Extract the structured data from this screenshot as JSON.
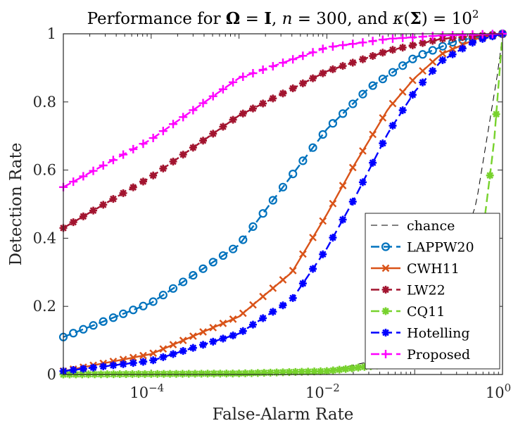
{
  "chart_data": {
    "type": "line",
    "title": "Performance for Ω = I, n = 300, and κ(Σ) = 10²",
    "title_parts": {
      "prefix": "Performance for ",
      "omega": "Ω",
      "eq1": " = ",
      "ident": "I",
      "comma1": ", ",
      "n": "n",
      "eq2": " = 300, and ",
      "kappa": "κ",
      "open": "(",
      "sigma": "Σ",
      "close": ") = 10",
      "sup": "2"
    },
    "xlabel": "False-Alarm Rate",
    "ylabel": "Detection Rate",
    "xscale": "log",
    "xlim": [
      1e-05,
      1
    ],
    "ylim": [
      0,
      1
    ],
    "xticks": [
      {
        "value": 0.0001,
        "base": "10",
        "exp": "−4"
      },
      {
        "value": 0.01,
        "base": "10",
        "exp": "−2"
      },
      {
        "value": 1,
        "base": "10",
        "exp": "0"
      }
    ],
    "yticks": [
      {
        "value": 0,
        "label": "0"
      },
      {
        "value": 0.2,
        "label": "0.2"
      },
      {
        "value": 0.4,
        "label": "0.4"
      },
      {
        "value": 0.6,
        "label": "0.6"
      },
      {
        "value": 0.8,
        "label": "0.8"
      },
      {
        "value": 1,
        "label": "1"
      }
    ],
    "legend_position": "bottom-right",
    "series": [
      {
        "name": "chance",
        "color": "#000000",
        "marker": "none",
        "dash": "dashed",
        "x": [
          1e-05,
          0.001,
          0.01,
          0.05,
          0.2,
          0.5,
          0.9,
          1
        ],
        "y": [
          1e-05,
          0.001,
          0.01,
          0.05,
          0.2,
          0.5,
          0.9,
          1
        ]
      },
      {
        "name": "LAPPW20",
        "color": "#0072BD",
        "marker": "circle",
        "dash": "dashed",
        "x": [
          1e-05,
          0.0001,
          0.001,
          0.01,
          0.03,
          0.1,
          0.3,
          1
        ],
        "y": [
          0.11,
          0.21,
          0.38,
          0.72,
          0.84,
          0.93,
          0.98,
          1.0
        ]
      },
      {
        "name": "CWH11",
        "color": "#D95319",
        "marker": "x",
        "dash": "solid",
        "x": [
          1e-05,
          0.0001,
          0.001,
          0.004,
          0.01,
          0.02,
          0.05,
          0.1,
          0.2,
          0.5,
          1
        ],
        "y": [
          0.01,
          0.06,
          0.17,
          0.3,
          0.47,
          0.61,
          0.78,
          0.87,
          0.94,
          0.985,
          1.0
        ]
      },
      {
        "name": "LW22",
        "color": "#A2142F",
        "marker": "star",
        "dash": "dashed",
        "x": [
          1e-05,
          0.0001,
          0.001,
          0.01,
          0.05,
          0.2,
          1
        ],
        "y": [
          0.43,
          0.58,
          0.76,
          0.89,
          0.95,
          0.985,
          1.0
        ]
      },
      {
        "name": "CQ11",
        "color": "#77D22D",
        "marker": "star",
        "dash": "dashed",
        "x": [
          1e-05,
          0.001,
          0.01,
          0.05,
          0.1,
          0.2,
          0.4,
          0.6,
          0.8,
          1
        ],
        "y": [
          0.0,
          0.003,
          0.01,
          0.03,
          0.05,
          0.1,
          0.22,
          0.42,
          0.68,
          1.0
        ]
      },
      {
        "name": "Hotelling",
        "color": "#0000FF",
        "marker": "star",
        "dash": "dashed",
        "x": [
          1e-05,
          0.0001,
          0.001,
          0.004,
          0.01,
          0.02,
          0.05,
          0.1,
          0.2,
          0.5,
          1
        ],
        "y": [
          0.01,
          0.04,
          0.12,
          0.22,
          0.37,
          0.51,
          0.71,
          0.83,
          0.92,
          0.98,
          1.0
        ]
      },
      {
        "name": "Proposed",
        "color": "#FF00FF",
        "marker": "plus",
        "dash": "dashed",
        "x": [
          1e-05,
          0.0001,
          0.001,
          0.01,
          0.05,
          0.2,
          1
        ],
        "y": [
          0.55,
          0.69,
          0.87,
          0.96,
          0.985,
          0.995,
          1.0
        ]
      }
    ]
  }
}
